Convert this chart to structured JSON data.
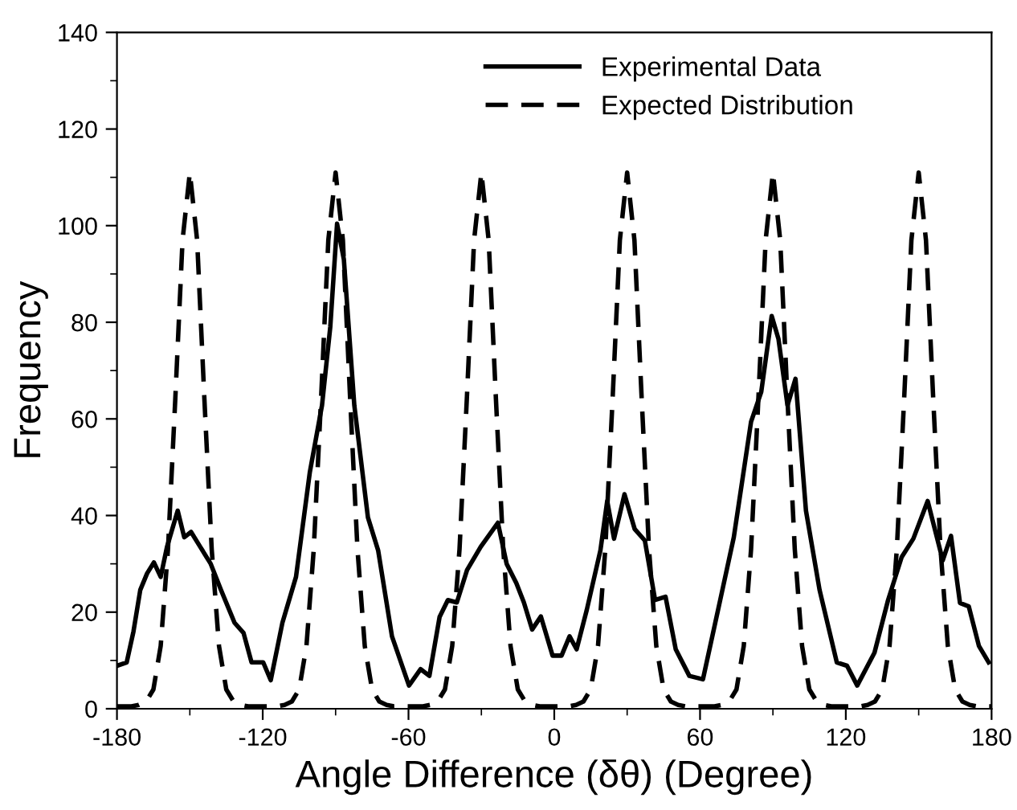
{
  "chart_data": {
    "type": "line",
    "xlabel": "Angle Difference (δθ) (Degree)",
    "ylabel": "Frequency",
    "xlim": [
      -180,
      180
    ],
    "xticks": [
      -180,
      -120,
      -60,
      0,
      60,
      120,
      180
    ],
    "ylim": [
      0,
      140
    ],
    "yticks": [
      0,
      20,
      40,
      60,
      80,
      100,
      120,
      140
    ],
    "grid": false,
    "legend": "top right",
    "marker": "none",
    "series": [
      {
        "name": "Experimental Data",
        "color": "#000000",
        "line_style": "solid",
        "x": [
          -180,
          -176,
          -173.2,
          -170.4,
          -167.6,
          -164.8,
          -162,
          -159.4,
          -155,
          -152.3,
          -149.5,
          -145.7,
          -141.4,
          -137.2,
          -131.6,
          -127.9,
          -124.6,
          -119.8,
          -116.7,
          -111.9,
          -106.3,
          -100.6,
          -95.6,
          -92.2,
          -89.4,
          -86.6,
          -82.3,
          -76.7,
          -72.5,
          -66.8,
          -59.8,
          -55,
          -51.4,
          -47.2,
          -43.8,
          -40.1,
          -35.9,
          -30.3,
          -23.2,
          -19.6,
          -15.6,
          -12.5,
          -9.1,
          -5.5,
          -0.7,
          3,
          6.3,
          9.2,
          13.4,
          19,
          21.8,
          24.6,
          28.9,
          33.1,
          37.3,
          41.5,
          45.8,
          50,
          55.6,
          61.2,
          68.3,
          73.9,
          81,
          85.2,
          89.5,
          92.3,
          96,
          99.3,
          103.6,
          109.2,
          116.3,
          120.5,
          124.7,
          131.8,
          137.4,
          143,
          147.8,
          153.7,
          159.9,
          163.3,
          167,
          170.6,
          174.8,
          178.8
        ],
        "values": [
          8.9,
          9.6,
          16,
          24.6,
          28,
          30.3,
          27.3,
          33.5,
          41,
          35.5,
          36.6,
          33.5,
          30,
          24.6,
          17.8,
          15.7,
          9.6,
          9.6,
          5.9,
          17.8,
          27.3,
          49,
          62.8,
          79,
          100.4,
          93,
          62.8,
          39.6,
          32.8,
          15,
          4.8,
          8.2,
          6.8,
          19,
          22.5,
          22,
          28.7,
          33.5,
          38.5,
          30,
          26,
          22,
          16.4,
          19.1,
          11,
          11,
          15,
          12.3,
          20.5,
          32.8,
          43,
          35.2,
          44.4,
          37.2,
          34.8,
          22.5,
          23.2,
          12.3,
          6.8,
          6.1,
          22.5,
          35.5,
          59.4,
          65.6,
          81.3,
          76.5,
          62.8,
          68.3,
          41,
          24.6,
          9.6,
          8.9,
          4.8,
          11.6,
          22.5,
          31.4,
          35.2,
          43,
          30.7,
          35.8,
          21.9,
          21.2,
          13,
          9.6
        ]
      },
      {
        "name": "Expected Distribution",
        "color": "#000000",
        "line_style": "dashed",
        "x": [
          -180,
          -177,
          -174,
          -171,
          -168,
          -165,
          -162,
          -159,
          -156,
          -153,
          -150,
          -147,
          -144,
          -141,
          -138,
          -135,
          -132,
          -129,
          -126,
          -123,
          -120,
          -117,
          -114,
          -111,
          -108,
          -105,
          -102,
          -99,
          -96,
          -93,
          -90,
          -87,
          -84,
          -81,
          -78,
          -75,
          -72,
          -69,
          -66,
          -63,
          -60,
          -57,
          -54,
          -51,
          -48,
          -45,
          -42,
          -39,
          -36,
          -33,
          -30,
          -27,
          -24,
          -21,
          -18,
          -15,
          -12,
          -9,
          -6,
          -3,
          0,
          3,
          6,
          9,
          12,
          15,
          18,
          21,
          24,
          27,
          30,
          33,
          36,
          39,
          42,
          45,
          48,
          51,
          54,
          57,
          60,
          63,
          66,
          69,
          72,
          75,
          78,
          81,
          84,
          87,
          90,
          93,
          96,
          99,
          102,
          105,
          108,
          111,
          114,
          117,
          120,
          123,
          126,
          129,
          132,
          135,
          138,
          141,
          144,
          147,
          150,
          153,
          156,
          159,
          162,
          165,
          168,
          171,
          174,
          177,
          180
        ],
        "values": [
          0.5,
          0.5,
          0.5,
          0.8,
          1.5,
          4,
          13,
          33,
          64,
          97,
          111,
          97,
          64,
          33,
          13,
          4,
          1.5,
          0.8,
          0.5,
          0.5,
          0.5,
          0.5,
          0.5,
          0.8,
          1.5,
          4,
          13,
          33,
          64,
          97,
          111,
          97,
          64,
          33,
          13,
          4,
          1.5,
          0.8,
          0.5,
          0.5,
          0.5,
          0.5,
          0.5,
          0.8,
          1.5,
          4,
          13,
          33,
          64,
          97,
          111,
          97,
          64,
          33,
          13,
          4,
          1.5,
          0.8,
          0.5,
          0.5,
          0.5,
          0.5,
          0.5,
          0.8,
          1.5,
          4,
          13,
          33,
          64,
          97,
          111,
          97,
          64,
          33,
          13,
          4,
          1.5,
          0.8,
          0.5,
          0.5,
          0.5,
          0.5,
          0.5,
          0.8,
          1.5,
          4,
          13,
          33,
          64,
          97,
          111,
          97,
          64,
          33,
          13,
          4,
          1.5,
          0.8,
          0.5,
          0.5,
          0.5,
          0.5,
          0.5,
          0.8,
          1.5,
          4,
          13,
          33,
          64,
          97,
          111,
          97,
          64,
          33,
          13,
          4,
          1.5,
          0.8,
          0.5,
          0.5,
          0.5
        ]
      }
    ]
  }
}
